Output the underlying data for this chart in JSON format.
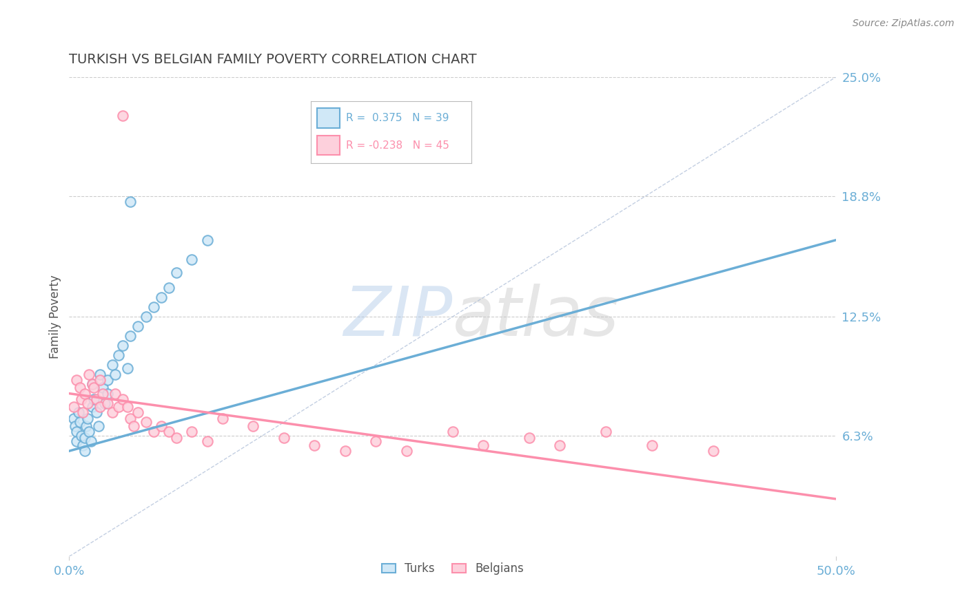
{
  "title": "TURKISH VS BELGIAN FAMILY POVERTY CORRELATION CHART",
  "source": "Source: ZipAtlas.com",
  "ylabel": "Family Poverty",
  "xlim": [
    0.0,
    0.5
  ],
  "ylim": [
    0.0,
    0.25
  ],
  "xtick_labels": [
    "0.0%",
    "50.0%"
  ],
  "ytick_labels": [
    "6.3%",
    "12.5%",
    "18.8%",
    "25.0%"
  ],
  "ytick_values": [
    0.063,
    0.125,
    0.188,
    0.25
  ],
  "turks_color": "#6baed6",
  "belgians_color": "#fc8fac",
  "R_turks": 0.375,
  "N_turks": 39,
  "R_belgians": -0.238,
  "N_belgians": 45,
  "turks_scatter": [
    [
      0.003,
      0.072
    ],
    [
      0.004,
      0.068
    ],
    [
      0.005,
      0.065
    ],
    [
      0.005,
      0.06
    ],
    [
      0.006,
      0.075
    ],
    [
      0.007,
      0.07
    ],
    [
      0.008,
      0.063
    ],
    [
      0.009,
      0.058
    ],
    [
      0.01,
      0.055
    ],
    [
      0.01,
      0.062
    ],
    [
      0.011,
      0.068
    ],
    [
      0.012,
      0.072
    ],
    [
      0.013,
      0.065
    ],
    [
      0.014,
      0.06
    ],
    [
      0.015,
      0.078
    ],
    [
      0.015,
      0.09
    ],
    [
      0.016,
      0.082
    ],
    [
      0.018,
      0.075
    ],
    [
      0.019,
      0.068
    ],
    [
      0.02,
      0.095
    ],
    [
      0.022,
      0.088
    ],
    [
      0.023,
      0.08
    ],
    [
      0.025,
      0.092
    ],
    [
      0.025,
      0.085
    ],
    [
      0.028,
      0.1
    ],
    [
      0.03,
      0.095
    ],
    [
      0.032,
      0.105
    ],
    [
      0.035,
      0.11
    ],
    [
      0.038,
      0.098
    ],
    [
      0.04,
      0.115
    ],
    [
      0.045,
      0.12
    ],
    [
      0.05,
      0.125
    ],
    [
      0.055,
      0.13
    ],
    [
      0.06,
      0.135
    ],
    [
      0.065,
      0.14
    ],
    [
      0.07,
      0.148
    ],
    [
      0.08,
      0.155
    ],
    [
      0.09,
      0.165
    ],
    [
      0.04,
      0.185
    ]
  ],
  "belgians_scatter": [
    [
      0.003,
      0.078
    ],
    [
      0.005,
      0.092
    ],
    [
      0.007,
      0.088
    ],
    [
      0.008,
      0.082
    ],
    [
      0.009,
      0.075
    ],
    [
      0.01,
      0.085
    ],
    [
      0.012,
      0.08
    ],
    [
      0.013,
      0.095
    ],
    [
      0.015,
      0.09
    ],
    [
      0.016,
      0.088
    ],
    [
      0.018,
      0.082
    ],
    [
      0.02,
      0.078
    ],
    [
      0.02,
      0.092
    ],
    [
      0.022,
      0.085
    ],
    [
      0.025,
      0.08
    ],
    [
      0.028,
      0.075
    ],
    [
      0.03,
      0.085
    ],
    [
      0.032,
      0.078
    ],
    [
      0.035,
      0.082
    ],
    [
      0.038,
      0.078
    ],
    [
      0.04,
      0.072
    ],
    [
      0.042,
      0.068
    ],
    [
      0.045,
      0.075
    ],
    [
      0.05,
      0.07
    ],
    [
      0.055,
      0.065
    ],
    [
      0.06,
      0.068
    ],
    [
      0.065,
      0.065
    ],
    [
      0.07,
      0.062
    ],
    [
      0.08,
      0.065
    ],
    [
      0.09,
      0.06
    ],
    [
      0.1,
      0.072
    ],
    [
      0.12,
      0.068
    ],
    [
      0.14,
      0.062
    ],
    [
      0.16,
      0.058
    ],
    [
      0.18,
      0.055
    ],
    [
      0.2,
      0.06
    ],
    [
      0.22,
      0.055
    ],
    [
      0.25,
      0.065
    ],
    [
      0.27,
      0.058
    ],
    [
      0.3,
      0.062
    ],
    [
      0.32,
      0.058
    ],
    [
      0.35,
      0.065
    ],
    [
      0.38,
      0.058
    ],
    [
      0.42,
      0.055
    ],
    [
      0.035,
      0.23
    ]
  ],
  "turks_line_x": [
    0.0,
    0.5
  ],
  "turks_line_y": [
    0.055,
    0.165
  ],
  "belgians_line_x": [
    0.0,
    0.5
  ],
  "belgians_line_y": [
    0.085,
    0.03
  ],
  "diag_line_color": "#aabbd6",
  "watermark_top": "ZIP",
  "watermark_bot": "atlas",
  "background_color": "#ffffff",
  "grid_color": "#cccccc",
  "axis_color": "#6baed6",
  "title_color": "#444444",
  "title_fontsize": 14,
  "source_color": "#888888"
}
